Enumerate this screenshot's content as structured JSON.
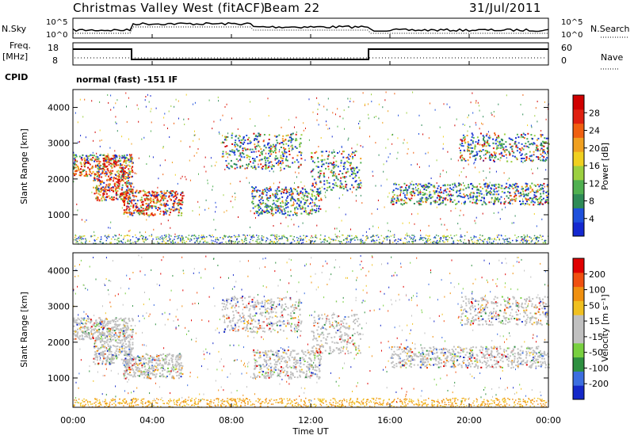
{
  "header": {
    "station": "Christmas Valley West (fitACF)",
    "beam": "Beam 22",
    "date": "31/Jul/2011"
  },
  "panels": {
    "nsky_label": "N.Sky",
    "nsearch_label": "N.Search",
    "freq_label_1": "Freq.",
    "freq_label_2": "[MHz]",
    "nave_label": "Nave",
    "cpid_label": "CPID",
    "cpid_text": "normal (fast) -151 IF",
    "noise_left_ticks": [
      "10^5",
      "10^0"
    ],
    "noise_right_ticks": [
      "10^5",
      "10^0"
    ],
    "freq_ticks": [
      "18",
      "8"
    ],
    "nave_ticks": [
      "60",
      "0"
    ]
  },
  "chart_data": [
    {
      "type": "heatmap",
      "name": "power",
      "ylabel": "Slant Range [km]",
      "ylim": [
        180,
        4500
      ],
      "y_ticks": [
        1000,
        2000,
        3000,
        4000
      ],
      "colorbar": {
        "label": "Power [dB]",
        "ticks": [
          "4",
          "8",
          "12",
          "16",
          "20",
          "24",
          "28"
        ],
        "colors": [
          "#1428d0",
          "#1e50dc",
          "#2e8b57",
          "#50b050",
          "#9cd040",
          "#f0d020",
          "#f0a020",
          "#f06010",
          "#e02010",
          "#d00000"
        ]
      }
    },
    {
      "type": "heatmap",
      "name": "velocity",
      "ylabel": "Slant Range [km]",
      "ylim": [
        180,
        4500
      ],
      "y_ticks": [
        1000,
        2000,
        3000,
        4000
      ],
      "colorbar": {
        "label": "Velocity [m s⁻¹]",
        "ticks": [
          "200",
          "100",
          "50",
          "15",
          "-15",
          "-50",
          "-100",
          "-200"
        ],
        "colors": [
          "#1428c8",
          "#3c6ee0",
          "#2e9040",
          "#78d040",
          "#c0c0c0",
          "#c0c0c0",
          "#f0c020",
          "#f09010",
          "#f05010",
          "#e00000"
        ]
      }
    }
  ],
  "xaxis": {
    "label": "Time UT",
    "tick_labels": [
      "00:00",
      "04:00",
      "08:00",
      "12:00",
      "16:00",
      "20:00",
      "00:00"
    ],
    "hours": [
      0,
      4,
      8,
      12,
      16,
      20,
      24
    ]
  }
}
